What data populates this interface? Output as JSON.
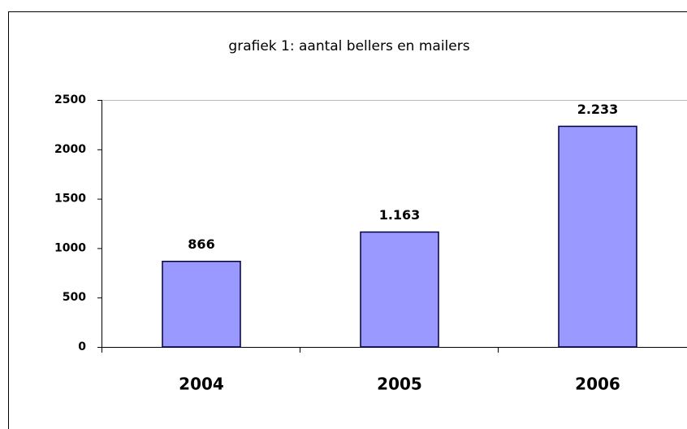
{
  "chart_data": {
    "type": "bar",
    "title": "grafiek 1: aantal bellers en mailers",
    "categories": [
      "2004",
      "2005",
      "2006"
    ],
    "values": [
      866,
      1163,
      2233
    ],
    "value_labels": [
      "866",
      "1.163",
      "2.233"
    ],
    "color": "#9999ff",
    "ylim": [
      0,
      2500
    ],
    "yticks": [
      0,
      500,
      1000,
      1500,
      2000,
      2500
    ],
    "grid": false
  }
}
